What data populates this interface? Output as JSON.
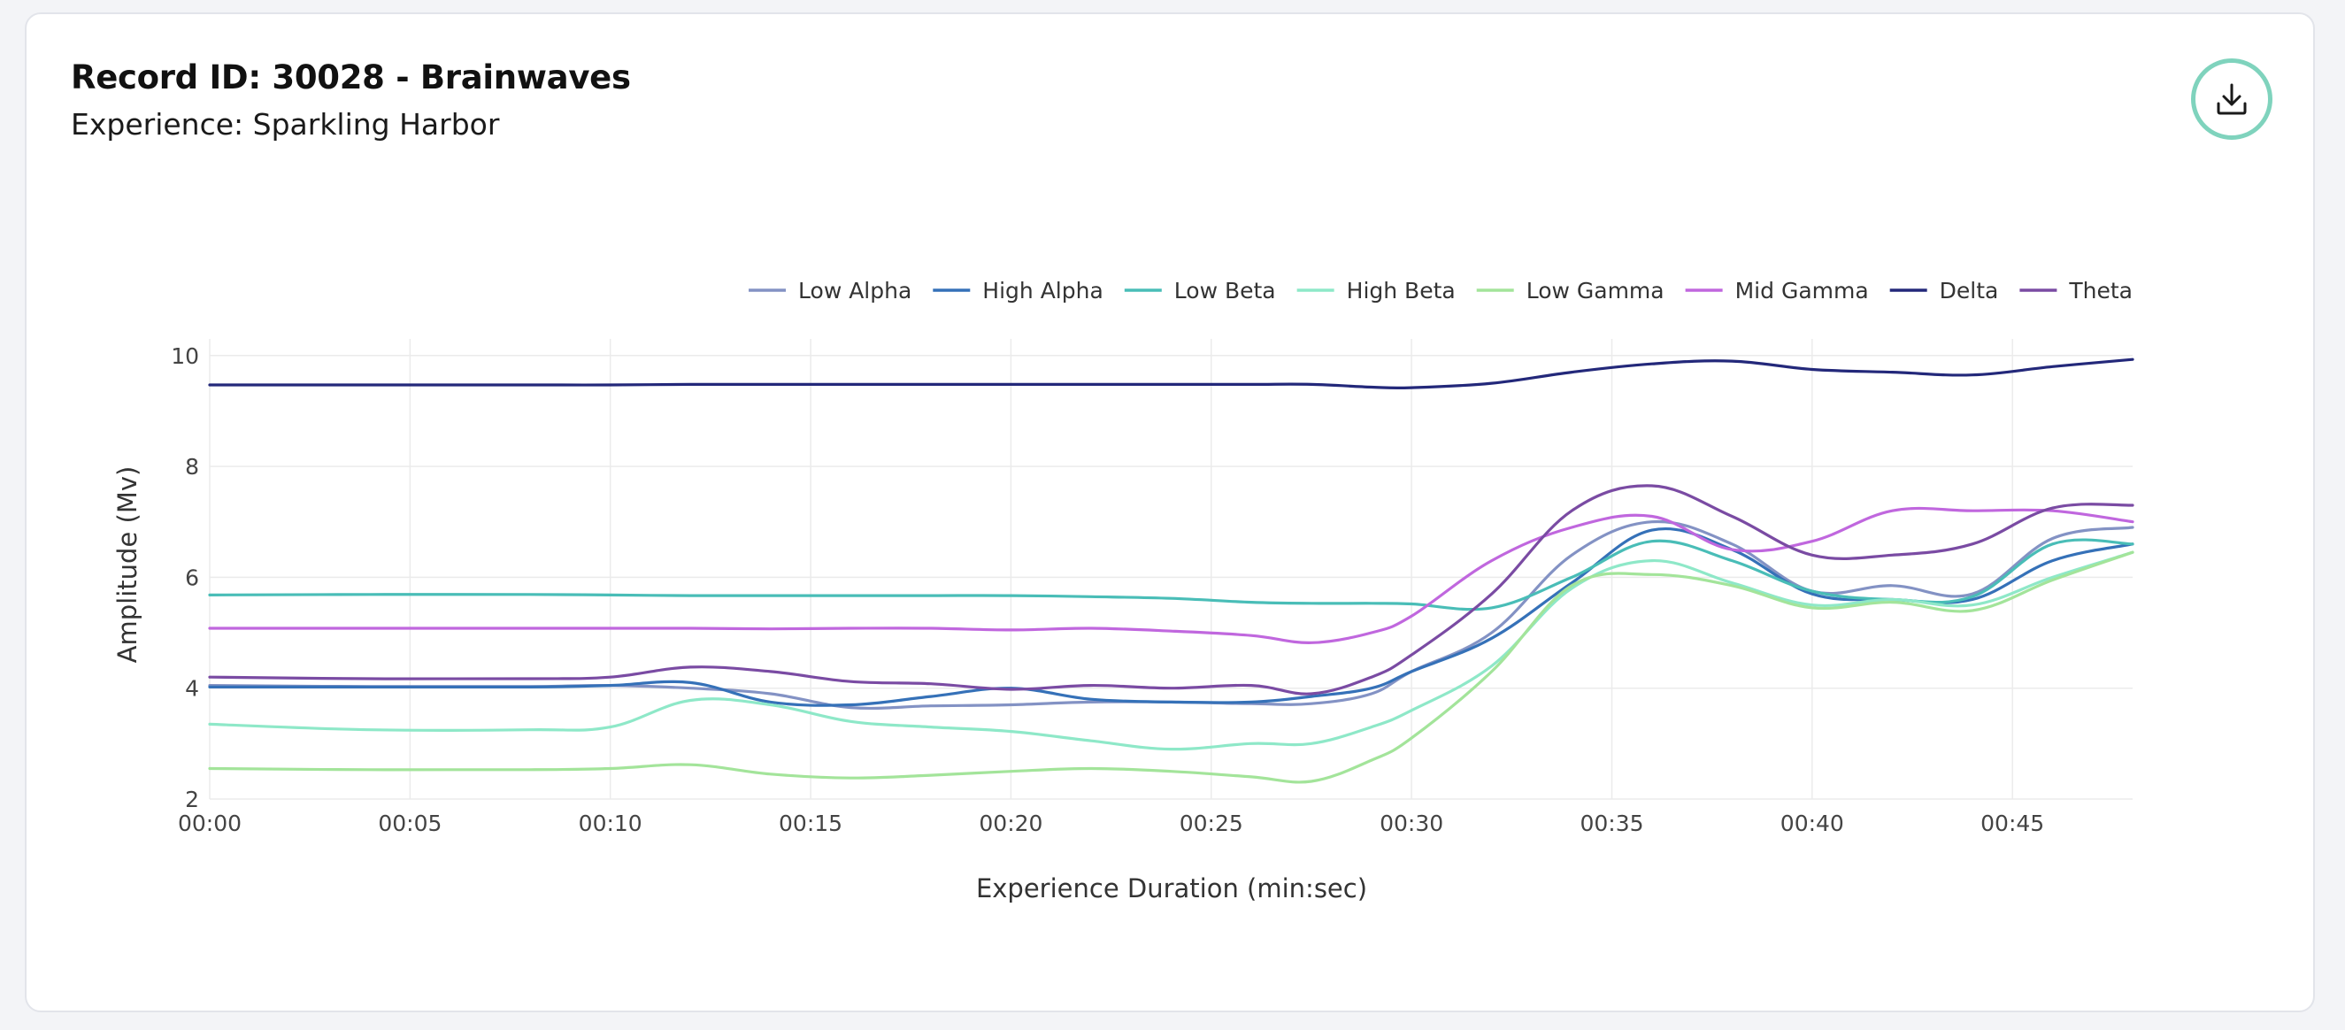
{
  "header": {
    "title": "Record ID: 30028 - Brainwaves",
    "subtitle": "Experience: Sparkling Harbor"
  },
  "actions": {
    "download_icon": "download-icon"
  },
  "chart_data": {
    "type": "line",
    "xlabel": "Experience Duration (min:sec)",
    "ylabel": "Amplitude (Mv)",
    "xlim": [
      0,
      48
    ],
    "ylim": [
      2,
      10.3
    ],
    "x_ticks": [
      {
        "v": 0,
        "label": "00:00"
      },
      {
        "v": 5,
        "label": "00:05"
      },
      {
        "v": 10,
        "label": "00:10"
      },
      {
        "v": 15,
        "label": "00:15"
      },
      {
        "v": 20,
        "label": "00:20"
      },
      {
        "v": 25,
        "label": "00:25"
      },
      {
        "v": 30,
        "label": "00:30"
      },
      {
        "v": 35,
        "label": "00:35"
      },
      {
        "v": 40,
        "label": "00:40"
      },
      {
        "v": 45,
        "label": "00:45"
      }
    ],
    "y_ticks": [
      {
        "v": 2,
        "label": "2"
      },
      {
        "v": 4,
        "label": "4"
      },
      {
        "v": 6,
        "label": "6"
      },
      {
        "v": 8,
        "label": "8"
      },
      {
        "v": 10,
        "label": "10"
      }
    ],
    "grid": true,
    "legend_position": "top-right",
    "x": [
      0,
      4,
      8,
      10,
      12,
      14,
      16,
      18,
      20,
      22,
      24,
      26,
      27.5,
      29,
      30,
      32,
      34,
      36,
      38,
      40,
      42,
      44,
      46,
      48
    ],
    "series": [
      {
        "name": "Low Alpha",
        "color": "#8392c4",
        "values": [
          4.05,
          4.03,
          4.03,
          4.05,
          4.0,
          3.9,
          3.65,
          3.68,
          3.7,
          3.75,
          3.75,
          3.72,
          3.72,
          3.9,
          4.3,
          5.0,
          6.4,
          7.0,
          6.6,
          5.75,
          5.85,
          5.7,
          6.7,
          6.9
        ]
      },
      {
        "name": "High Alpha",
        "color": "#3571b8",
        "values": [
          4.02,
          4.02,
          4.02,
          4.05,
          4.1,
          3.75,
          3.7,
          3.85,
          4.0,
          3.8,
          3.75,
          3.75,
          3.85,
          4.0,
          4.3,
          4.9,
          5.9,
          6.85,
          6.5,
          5.7,
          5.6,
          5.6,
          6.3,
          6.6
        ]
      },
      {
        "name": "Low Beta",
        "color": "#49bdb7",
        "values": [
          5.68,
          5.69,
          5.69,
          5.68,
          5.67,
          5.67,
          5.67,
          5.67,
          5.67,
          5.65,
          5.62,
          5.55,
          5.53,
          5.53,
          5.52,
          5.45,
          6.0,
          6.65,
          6.3,
          5.75,
          5.6,
          5.65,
          6.6,
          6.6
        ]
      },
      {
        "name": "High Beta",
        "color": "#8ee8c8",
        "values": [
          3.35,
          3.25,
          3.25,
          3.3,
          3.78,
          3.7,
          3.4,
          3.3,
          3.22,
          3.05,
          2.9,
          3.0,
          3.0,
          3.3,
          3.6,
          4.4,
          5.8,
          6.3,
          5.9,
          5.5,
          5.6,
          5.5,
          6.0,
          6.45
        ]
      },
      {
        "name": "Low Gamma",
        "color": "#a3e49a",
        "values": [
          2.55,
          2.53,
          2.53,
          2.55,
          2.62,
          2.45,
          2.38,
          2.43,
          2.5,
          2.55,
          2.5,
          2.4,
          2.32,
          2.7,
          3.1,
          4.3,
          5.85,
          6.05,
          5.85,
          5.45,
          5.55,
          5.4,
          5.95,
          6.45
        ]
      },
      {
        "name": "Mid Gamma",
        "color": "#c067de",
        "values": [
          5.08,
          5.08,
          5.08,
          5.08,
          5.08,
          5.07,
          5.08,
          5.08,
          5.05,
          5.08,
          5.03,
          4.95,
          4.82,
          5.0,
          5.3,
          6.3,
          6.9,
          7.1,
          6.5,
          6.65,
          7.2,
          7.2,
          7.2,
          7.0
        ]
      },
      {
        "name": "Delta",
        "color": "#23287a",
        "values": [
          9.47,
          9.47,
          9.47,
          9.47,
          9.48,
          9.48,
          9.48,
          9.48,
          9.48,
          9.48,
          9.48,
          9.48,
          9.48,
          9.43,
          9.42,
          9.5,
          9.7,
          9.85,
          9.9,
          9.75,
          9.7,
          9.65,
          9.8,
          9.93
        ]
      },
      {
        "name": "Theta",
        "color": "#7a4ba3",
        "values": [
          4.2,
          4.17,
          4.17,
          4.2,
          4.38,
          4.3,
          4.12,
          4.08,
          3.98,
          4.05,
          4.0,
          4.05,
          3.9,
          4.2,
          4.6,
          5.7,
          7.2,
          7.65,
          7.1,
          6.4,
          6.4,
          6.6,
          7.25,
          7.3
        ]
      }
    ]
  }
}
